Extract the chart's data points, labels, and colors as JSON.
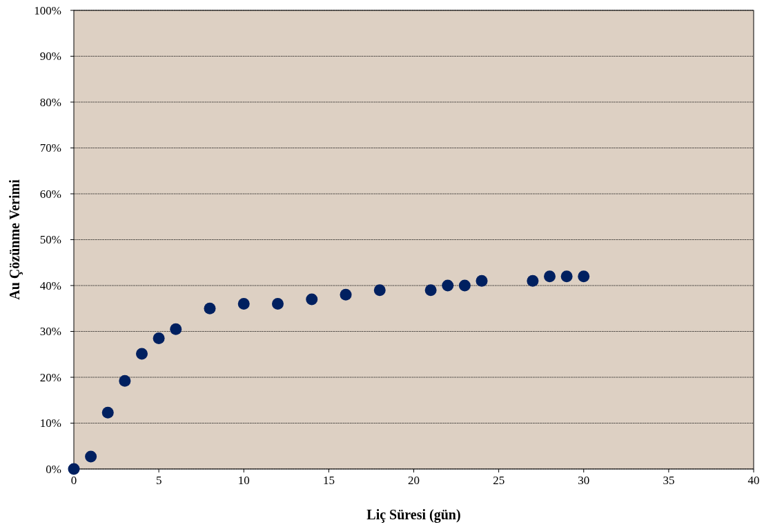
{
  "chart_data": {
    "type": "scatter",
    "xlabel": "Liç Süresi (gün)",
    "ylabel": "Au Çözünme Verimi",
    "x": [
      0,
      1,
      2,
      3,
      4,
      5,
      6,
      8,
      10,
      12,
      14,
      16,
      18,
      21,
      22,
      23,
      24,
      27,
      28,
      29,
      30
    ],
    "series": [
      {
        "color": "#002060",
        "values": [
          0,
          2.7,
          12.3,
          19.2,
          25.1,
          28.5,
          30.5,
          35,
          36,
          36,
          37,
          38,
          39,
          39,
          40,
          40,
          41,
          41,
          42,
          42,
          42
        ]
      }
    ],
    "xlim": [
      0,
      40
    ],
    "xticks": [
      0,
      5,
      10,
      15,
      20,
      25,
      30,
      35,
      40
    ],
    "ylim": [
      0,
      100
    ],
    "yticks": [
      {
        "value": 0,
        "label": "0%"
      },
      {
        "value": 10,
        "label": "10%"
      },
      {
        "value": 20,
        "label": "20%"
      },
      {
        "value": 30,
        "label": "30%"
      },
      {
        "value": 40,
        "label": "40%"
      },
      {
        "value": 50,
        "label": "50%"
      },
      {
        "value": 60,
        "label": "60%"
      },
      {
        "value": 70,
        "label": "70%"
      },
      {
        "value": 80,
        "label": "80%"
      },
      {
        "value": 90,
        "label": "90%"
      },
      {
        "value": 100,
        "label": "100%"
      }
    ],
    "grid": "y",
    "marker": "circle"
  }
}
